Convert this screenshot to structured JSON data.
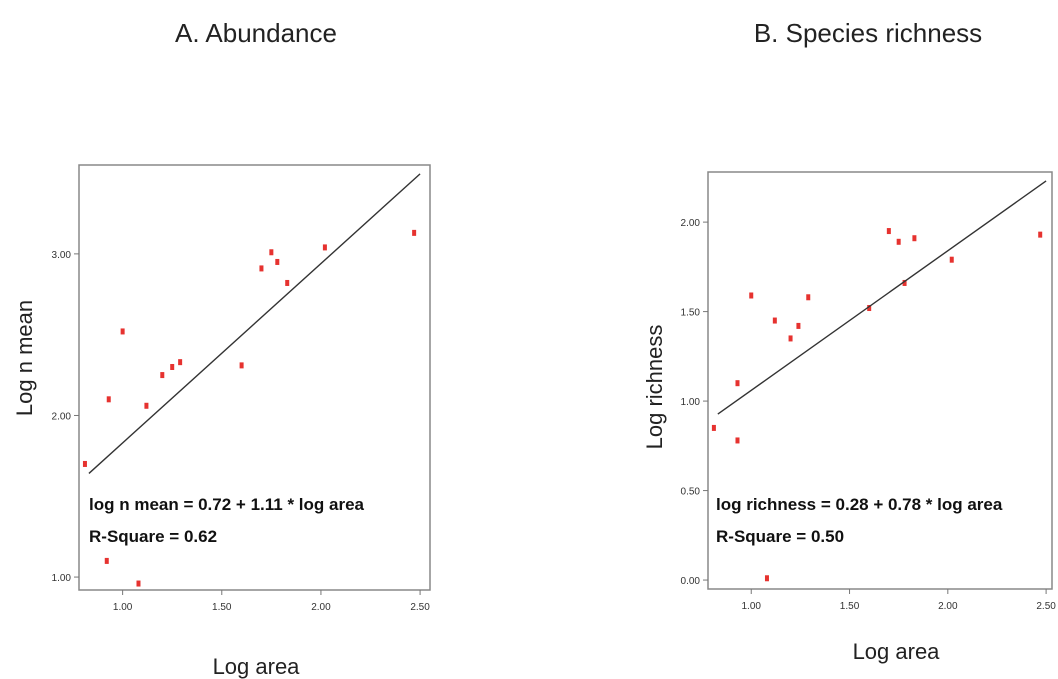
{
  "chart_data": [
    {
      "type": "scatter",
      "title": "A. Abundance",
      "xlabel": "Log area",
      "ylabel": "Log n mean",
      "xlim": [
        0.78,
        2.55
      ],
      "ylim": [
        0.92,
        3.55
      ],
      "xticks": [
        1.0,
        1.5,
        2.0,
        2.5
      ],
      "yticks": [
        1.0,
        2.0,
        3.0
      ],
      "xtick_labels": [
        "1.00",
        "1.50",
        "2.00",
        "2.50"
      ],
      "ytick_labels": [
        "1.00",
        "2.00",
        "3.00"
      ],
      "points": {
        "x": [
          0.81,
          0.92,
          0.93,
          1.0,
          1.08,
          1.12,
          1.2,
          1.25,
          1.29,
          1.6,
          1.7,
          1.75,
          1.78,
          1.83,
          2.02,
          2.47
        ],
        "y": [
          1.7,
          1.1,
          2.1,
          2.52,
          0.96,
          2.06,
          2.25,
          2.3,
          2.33,
          2.31,
          2.91,
          3.01,
          2.95,
          2.82,
          3.04,
          3.13
        ]
      },
      "fit_line": {
        "intercept": 0.72,
        "slope": 1.11,
        "x_range": [
          0.83,
          2.5
        ]
      },
      "annotations": [
        "log n mean = 0.72 + 1.11 * log area",
        "R-Square = 0.62"
      ],
      "point_color": "#e6322f",
      "line_color": "#333333"
    },
    {
      "type": "scatter",
      "title": "B. Species richness",
      "xlabel": "Log area",
      "ylabel": "Log  richness",
      "xlim": [
        0.78,
        2.53
      ],
      "ylim": [
        -0.05,
        2.28
      ],
      "xticks": [
        1.0,
        1.5,
        2.0,
        2.5
      ],
      "yticks": [
        0.0,
        0.5,
        1.0,
        1.5,
        2.0
      ],
      "xtick_labels": [
        "1.00",
        "1.50",
        "2.00",
        "2.50"
      ],
      "ytick_labels": [
        "0.00",
        "0.50",
        "1.00",
        "1.50",
        "2.00"
      ],
      "points": {
        "x": [
          0.81,
          0.93,
          0.93,
          1.0,
          1.08,
          1.12,
          1.2,
          1.24,
          1.29,
          1.6,
          1.7,
          1.75,
          1.78,
          1.83,
          2.02,
          2.47
        ],
        "y": [
          0.85,
          1.1,
          0.78,
          1.59,
          0.01,
          1.45,
          1.35,
          1.42,
          1.58,
          1.52,
          1.95,
          1.89,
          1.66,
          1.91,
          1.79,
          1.93
        ]
      },
      "fit_line": {
        "intercept": 0.28,
        "slope": 0.78,
        "x_range": [
          0.83,
          2.5
        ]
      },
      "annotations": [
        "log richness = 0.28 + 0.78 * log area",
        "R-Square = 0.50"
      ],
      "point_color": "#e6322f",
      "line_color": "#333333"
    }
  ]
}
